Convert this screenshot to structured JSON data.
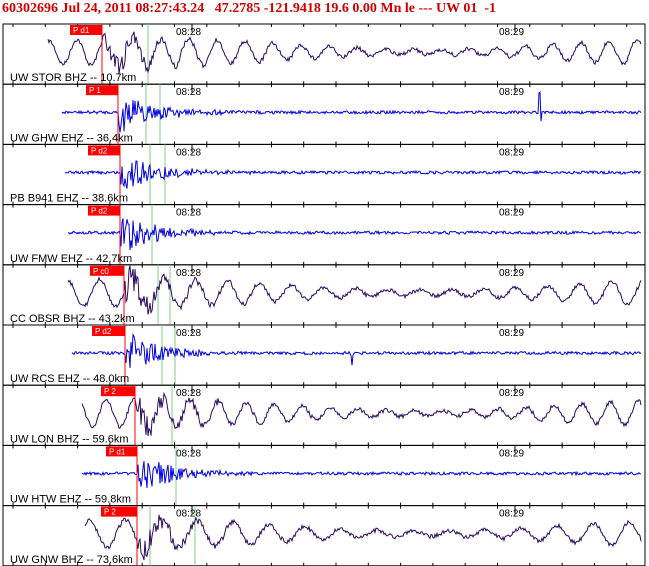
{
  "header": {
    "title": "60302696 Jul 24, 2011 08:27:43.24   47.2785 -121.9418 19.6 0.00 Mn le --- UW 01  -1"
  },
  "time_labels": [
    "08:28",
    "08:29"
  ],
  "traces": [
    {
      "label": "UW STOR BHZ -- 10.7km",
      "pick": "P d1",
      "color": "#2a0a5e"
    },
    {
      "label": "UW GHW EHZ -- 36.4km",
      "pick": "P 1",
      "color": "#0000e6"
    },
    {
      "label": "PB B941 EHZ -- 38.6km",
      "pick": "P d2",
      "color": "#0000e6"
    },
    {
      "label": "UW FMW EHZ -- 42.7km",
      "pick": "P d2",
      "color": "#0000e6"
    },
    {
      "label": "CC OBSR BHZ -- 43.2km",
      "pick": "P c0",
      "color": "#2a0a5e"
    },
    {
      "label": "UW RCS EHZ -- 48.0km",
      "pick": "P d2",
      "color": "#0000e6"
    },
    {
      "label": "UW LON BHZ -- 59.6km",
      "pick": "P 2",
      "color": "#2a0a5e"
    },
    {
      "label": "UW HTW EHZ -- 59.8km",
      "pick": "P d1",
      "color": "#0000e6"
    },
    {
      "label": "UW GNW BHZ -- 73.6km",
      "pick": "P 2",
      "color": "#2a0a5e"
    }
  ]
}
